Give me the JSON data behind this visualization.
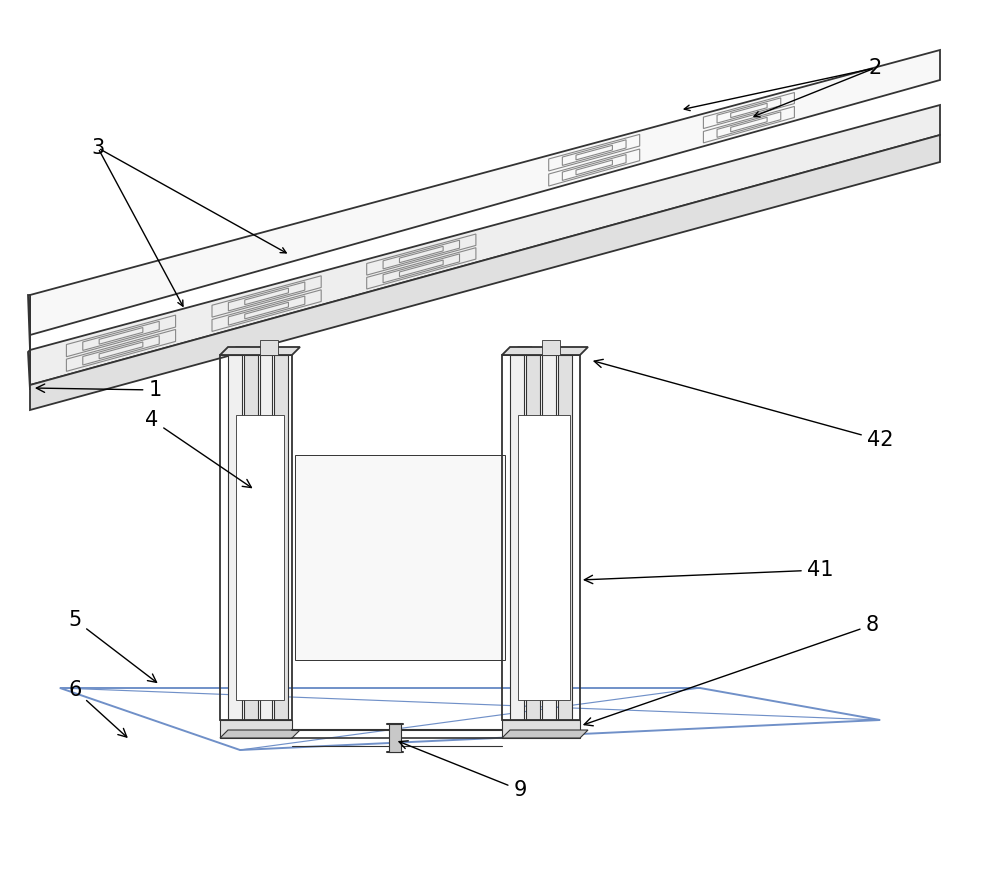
{
  "bg_color": "#ffffff",
  "line_color": "#333333",
  "blue_line_color": "#7090c8",
  "fig_width": 10.0,
  "fig_height": 8.75,
  "dpi": 100,
  "lw_main": 1.3,
  "lw_thin": 0.8,
  "lw_blue": 1.4,
  "face_light": "#f0f0f0",
  "face_mid": "#e0e0e0",
  "face_dark": "#c8c8c8",
  "face_board": "#eeeeee",
  "pattern_color": "#888888"
}
